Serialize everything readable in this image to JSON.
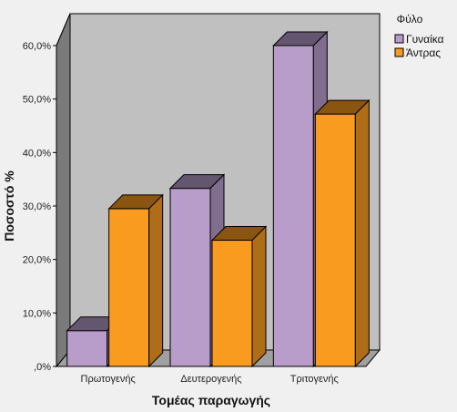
{
  "chart_data": {
    "type": "bar",
    "style": "3d-clustered-bar",
    "title": "",
    "xlabel": "Τομέας παραγωγής",
    "ylabel": "Ποσοστό %",
    "categories": [
      "Πρωτογενής",
      "Δευτερογενής",
      "Τριτογενής"
    ],
    "series": [
      {
        "name": "Γυναίκα",
        "values": [
          6.7,
          33.3,
          60.0
        ],
        "color": "#b89cc9"
      },
      {
        "name": "Άντρας",
        "values": [
          29.5,
          23.6,
          47.2
        ],
        "color": "#f99b1f"
      }
    ],
    "ylim": [
      0,
      60
    ],
    "yticks": [
      0,
      10,
      20,
      30,
      40,
      50,
      60
    ],
    "ytick_labels": [
      ",0%",
      "10,0%",
      "20,0%",
      "30,0%",
      "40,0%",
      "50,0%",
      "60,0%"
    ],
    "legend": {
      "title": "Φύλο",
      "placement": "right-top"
    },
    "grid": false,
    "wall_color": "#c0c0c0"
  }
}
